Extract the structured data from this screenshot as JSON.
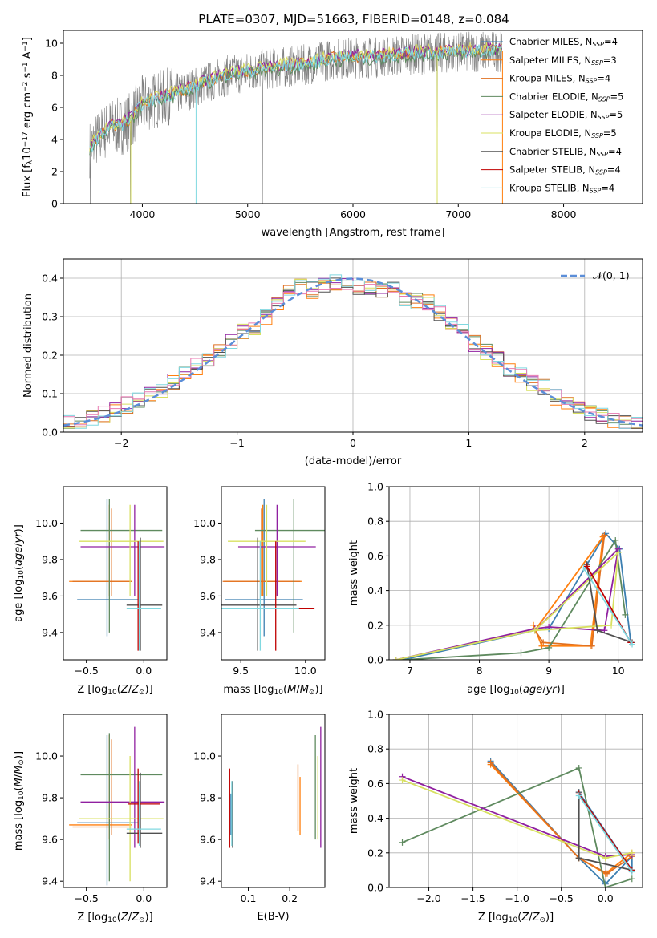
{
  "figure": {
    "title": "PLATE=0307, MJD=51663, FIBERID=0148, z=0.084",
    "legend_normal": "𝒩(0, 1)",
    "model_colors": {
      "Chabrier MILES": "#3c7fb1",
      "Salpeter MILES": "#ff7f0e",
      "Kroupa MILES": "#e07020",
      "Chabrier ELODIE": "#5f8a5f",
      "Salpeter ELODIE": "#9020a0",
      "Kroupa ELODIE": "#d8e060",
      "Chabrier STELIB": "#505050",
      "Salpeter STELIB": "#c00000",
      "Kroupa STELIB": "#80d8e0"
    }
  },
  "chart_data": [
    {
      "id": "spectrum",
      "type": "line",
      "xlabel": "wavelength [Angstrom, rest frame]",
      "ylabel": "Flux [f_λ10^-17 erg cm^-2 s^-1 A^-1]",
      "xlim": [
        3250,
        8750
      ],
      "ylim": [
        0,
        10.8
      ],
      "xticks": [
        4000,
        5000,
        6000,
        7000,
        8000
      ],
      "yticks": [
        0,
        2,
        4,
        6,
        8,
        10
      ],
      "legend_position": "right",
      "grid": false,
      "series": [
        {
          "name": "Chabrier MILES, N_SSP=4"
        },
        {
          "name": "Salpeter MILES, N_SSP=3"
        },
        {
          "name": "Kroupa MILES, N_SSP=4"
        },
        {
          "name": "Chabrier ELODIE, N_SSP=5"
        },
        {
          "name": "Salpeter ELODIE, N_SSP=5"
        },
        {
          "name": "Kroupa ELODIE, N_SSP=5"
        },
        {
          "name": "Chabrier STELIB, N_SSP=4"
        },
        {
          "name": "Salpeter STELIB, N_SSP=4"
        },
        {
          "name": "Kroupa STELIB, N_SSP=4"
        }
      ],
      "continuum_points": [
        [
          3500,
          3.4
        ],
        [
          3600,
          4.2
        ],
        [
          3700,
          4.8
        ],
        [
          3800,
          4.8
        ],
        [
          3900,
          5.3
        ],
        [
          4000,
          6.2
        ],
        [
          4200,
          6.6
        ],
        [
          4400,
          7.0
        ],
        [
          4600,
          7.5
        ],
        [
          4800,
          8.0
        ],
        [
          5000,
          8.2
        ],
        [
          5200,
          8.4
        ],
        [
          5500,
          8.6
        ],
        [
          5800,
          9.0
        ],
        [
          6000,
          9.1
        ],
        [
          6200,
          9.1
        ],
        [
          6500,
          9.3
        ],
        [
          6800,
          9.4
        ],
        [
          7000,
          9.4
        ],
        [
          7200,
          9.5
        ],
        [
          7420,
          9.5
        ]
      ]
    },
    {
      "id": "residuals",
      "type": "line",
      "xlabel": "(data-model)/error",
      "ylabel": "Normed distribution",
      "xlim": [
        -2.5,
        2.5
      ],
      "ylim": [
        0,
        0.45
      ],
      "xticks": [
        -2,
        -1,
        0,
        1,
        2
      ],
      "yticks": [
        0.0,
        0.1,
        0.2,
        0.3,
        0.4
      ],
      "legend_position": "top-right",
      "grid": true,
      "bin_width": 0.1,
      "histogram_approx": [
        0.022,
        0.03,
        0.034,
        0.045,
        0.06,
        0.07,
        0.082,
        0.096,
        0.112,
        0.13,
        0.15,
        0.17,
        0.19,
        0.212,
        0.236,
        0.26,
        0.275,
        0.3,
        0.33,
        0.37,
        0.38,
        0.37,
        0.38,
        0.39,
        0.39,
        0.38,
        0.38,
        0.37,
        0.37,
        0.35,
        0.34,
        0.34,
        0.31,
        0.28,
        0.26,
        0.23,
        0.21,
        0.19,
        0.16,
        0.15,
        0.13,
        0.12,
        0.09,
        0.08,
        0.06,
        0.05,
        0.04,
        0.03,
        0.03,
        0.025
      ]
    },
    {
      "id": "age_vs_Z",
      "type": "scatter",
      "xlabel": "Z [log10(Z/Z⊙)]",
      "ylabel": "age [log10(age/yr)]",
      "xlim": [
        -0.7,
        0.2
      ],
      "ylim": [
        9.25,
        10.2
      ],
      "xticks": [
        -0.5,
        0.0
      ],
      "yticks": [
        9.4,
        9.6,
        9.8,
        10.0
      ]
    },
    {
      "id": "age_vs_mass",
      "type": "scatter",
      "xlabel": "mass [log10(M/M⊙)]",
      "ylabel": "",
      "xlim": [
        9.35,
        10.15
      ],
      "ylim": [
        9.25,
        10.2
      ],
      "xticks": [
        9.5,
        10.0
      ],
      "yticks": [
        9.4,
        9.6,
        9.8,
        10.0
      ]
    },
    {
      "id": "weight_vs_age",
      "type": "line",
      "xlabel": "age [log10(age/yr)]",
      "ylabel": "mass weight",
      "xlim": [
        6.7,
        10.35
      ],
      "ylim": [
        0,
        1.0
      ],
      "xticks": [
        7,
        8,
        9,
        10
      ],
      "yticks": [
        0.0,
        0.2,
        0.4,
        0.6,
        0.8,
        1.0
      ],
      "grid": true
    },
    {
      "id": "mass_vs_Z",
      "type": "scatter",
      "xlabel": "Z [log10(Z/Z⊙)]",
      "ylabel": "mass [log10(M/M⊙)]",
      "xlim": [
        -0.7,
        0.2
      ],
      "ylim": [
        9.37,
        10.2
      ],
      "xticks": [
        -0.5,
        0.0
      ],
      "yticks": [
        9.4,
        9.6,
        9.8,
        10.0
      ]
    },
    {
      "id": "mass_vs_ebv",
      "type": "scatter",
      "xlabel": "E(B-V)",
      "ylabel": "",
      "xlim": [
        0.035,
        0.285
      ],
      "ylim": [
        9.37,
        10.2
      ],
      "xticks": [
        0.1,
        0.2
      ],
      "yticks": [
        9.4,
        9.6,
        9.8,
        10.0
      ]
    },
    {
      "id": "weight_vs_Z",
      "type": "line",
      "xlabel": "Z [log10(Z/Z⊙)]",
      "ylabel": "mass weight",
      "xlim": [
        -2.45,
        0.42
      ],
      "ylim": [
        0,
        1.0
      ],
      "xticks": [
        -2.0,
        -1.5,
        -1.0,
        -0.5,
        0.0
      ],
      "yticks": [
        0.0,
        0.2,
        0.4,
        0.6,
        0.8,
        1.0
      ],
      "grid": true
    }
  ],
  "models": [
    {
      "name": "Chabrier MILES",
      "Z": -0.32,
      "age": 9.58,
      "age_lo": 9.38,
      "age_hi": 10.13,
      "zlo": -0.58,
      "zhi": -0.05,
      "mass": 9.68,
      "mass_lo": 9.38,
      "mass_hi": 10.1,
      "ebv": 0.058,
      "ebv_lo": 9.62,
      "ebv_hi": 9.82,
      "wt_age": [
        [
          6.9,
          0.0
        ],
        [
          8.8,
          0.17
        ],
        [
          9.0,
          0.18
        ],
        [
          9.55,
          0.55
        ],
        [
          9.82,
          0.73
        ],
        [
          10.02,
          0.64
        ],
        [
          10.18,
          0.1
        ]
      ],
      "wt_Z": [
        [
          -1.3,
          0.73
        ],
        [
          -0.3,
          0.17
        ],
        [
          0.0,
          0.02
        ],
        [
          0.3,
          0.18
        ],
        [
          0.3,
          0.1
        ],
        [
          -0.3,
          0.55
        ]
      ]
    },
    {
      "name": "Salpeter MILES",
      "Z": -0.3,
      "age": 9.68,
      "age_lo": 9.6,
      "age_hi": 10.1,
      "zlo": -0.65,
      "zhi": -0.1,
      "mass": 9.67,
      "mass_lo": 9.6,
      "mass_hi": 10.1,
      "ebv": 0.225,
      "ebv_lo": 9.62,
      "ebv_hi": 9.9,
      "wt_age": [
        [
          8.78,
          0.2
        ],
        [
          8.9,
          0.08
        ],
        [
          9.6,
          0.08
        ],
        [
          9.78,
          0.71
        ],
        [
          8.8,
          0.17
        ]
      ],
      "wt_Z": [
        [
          -1.3,
          0.71
        ],
        [
          -0.3,
          0.17
        ],
        [
          0.0,
          0.08
        ],
        [
          0.3,
          0.2
        ]
      ]
    },
    {
      "name": "Kroupa MILES",
      "Z": -0.28,
      "age": 9.68,
      "age_lo": 9.6,
      "age_hi": 10.08,
      "zlo": -0.62,
      "zhi": -0.1,
      "mass": 9.66,
      "mass_lo": 9.62,
      "mass_hi": 10.08,
      "ebv": 0.22,
      "ebv_lo": 9.64,
      "ebv_hi": 9.96,
      "wt_age": [
        [
          8.8,
          0.17
        ],
        [
          8.92,
          0.1
        ],
        [
          9.62,
          0.08
        ],
        [
          9.8,
          0.72
        ]
      ],
      "wt_Z": [
        [
          -1.3,
          0.72
        ],
        [
          -0.3,
          0.17
        ],
        [
          0.02,
          0.08
        ],
        [
          0.3,
          0.18
        ]
      ]
    },
    {
      "name": "Chabrier ELODIE",
      "Z": -0.3,
      "age": 9.96,
      "age_lo": 9.4,
      "age_hi": 10.13,
      "zlo": -0.55,
      "zhi": 0.16,
      "mass": 9.91,
      "mass_lo": 9.4,
      "mass_hi": 10.11,
      "ebv": 0.262,
      "ebv_lo": 9.6,
      "ebv_hi": 10.1,
      "wt_age": [
        [
          6.9,
          0.0
        ],
        [
          8.6,
          0.04
        ],
        [
          9.0,
          0.07
        ],
        [
          9.96,
          0.69
        ],
        [
          10.1,
          0.26
        ]
      ],
      "wt_Z": [
        [
          -2.3,
          0.26
        ],
        [
          -0.3,
          0.69
        ],
        [
          0.0,
          0.0
        ],
        [
          0.3,
          0.05
        ]
      ]
    },
    {
      "name": "Salpeter ELODIE",
      "Z": -0.08,
      "age": 9.87,
      "age_lo": 9.6,
      "age_hi": 10.1,
      "zlo": -0.55,
      "zhi": 0.18,
      "mass": 9.78,
      "mass_lo": 9.56,
      "mass_hi": 10.14,
      "ebv": 0.275,
      "ebv_lo": 9.56,
      "ebv_hi": 10.14,
      "wt_age": [
        [
          6.8,
          0.0
        ],
        [
          8.8,
          0.18
        ],
        [
          9.0,
          0.19
        ],
        [
          9.8,
          0.17
        ],
        [
          10.0,
          0.64
        ],
        [
          8.8,
          0.17
        ]
      ],
      "wt_Z": [
        [
          -2.3,
          0.64
        ],
        [
          0.0,
          0.18
        ],
        [
          0.3,
          0.19
        ]
      ]
    },
    {
      "name": "Kroupa ELODIE",
      "Z": -0.12,
      "age": 9.9,
      "age_lo": 9.6,
      "age_hi": 10.1,
      "zlo": -0.56,
      "zhi": 0.17,
      "mass": 9.7,
      "mass_lo": 9.4,
      "mass_hi": 10.0,
      "ebv": 0.268,
      "ebv_lo": 9.6,
      "ebv_hi": 10.0,
      "wt_age": [
        [
          6.8,
          0.0
        ],
        [
          8.8,
          0.17
        ],
        [
          9.9,
          0.2
        ],
        [
          10.0,
          0.62
        ],
        [
          8.8,
          0.17
        ]
      ],
      "wt_Z": [
        [
          -2.3,
          0.62
        ],
        [
          0.0,
          0.17
        ],
        [
          0.3,
          0.2
        ]
      ]
    },
    {
      "name": "Chabrier STELIB",
      "Z": -0.03,
      "age": 9.55,
      "age_lo": 9.3,
      "age_hi": 9.92,
      "zlo": -0.15,
      "zhi": 0.16,
      "mass": 9.63,
      "mass_lo": 9.56,
      "mass_hi": 9.92,
      "ebv": 0.062,
      "ebv_lo": 9.56,
      "ebv_hi": 9.88,
      "wt_age": [
        [
          9.55,
          0.55
        ],
        [
          9.7,
          0.17
        ],
        [
          10.2,
          0.1
        ]
      ],
      "wt_Z": [
        [
          -0.3,
          0.55
        ],
        [
          -0.3,
          0.17
        ],
        [
          0.3,
          0.1
        ]
      ]
    },
    {
      "name": "Salpeter STELIB",
      "Z": -0.05,
      "age": 9.53,
      "age_lo": 9.3,
      "age_hi": 9.9,
      "zlo": -0.14,
      "zhi": 0.14,
      "mass": 9.77,
      "mass_lo": 9.58,
      "mass_hi": 9.94,
      "ebv": 0.055,
      "ebv_lo": 9.56,
      "ebv_hi": 9.94,
      "wt_age": [
        [
          9.55,
          0.54
        ],
        [
          10.18,
          0.1
        ]
      ],
      "wt_Z": [
        [
          -0.3,
          0.54
        ],
        [
          0.3,
          0.1
        ]
      ]
    },
    {
      "name": "Kroupa STELIB",
      "Z": -0.04,
      "age": 9.53,
      "age_lo": 9.3,
      "age_hi": 9.9,
      "zlo": -0.15,
      "zhi": 0.15,
      "mass": 9.65,
      "mass_lo": 9.57,
      "mass_hi": 9.88,
      "ebv": 0.06,
      "ebv_lo": 9.57,
      "ebv_hi": 9.88,
      "wt_age": [
        [
          9.5,
          0.53
        ],
        [
          10.2,
          0.09
        ]
      ],
      "wt_Z": [
        [
          -0.3,
          0.53
        ],
        [
          0.3,
          0.09
        ]
      ]
    }
  ]
}
